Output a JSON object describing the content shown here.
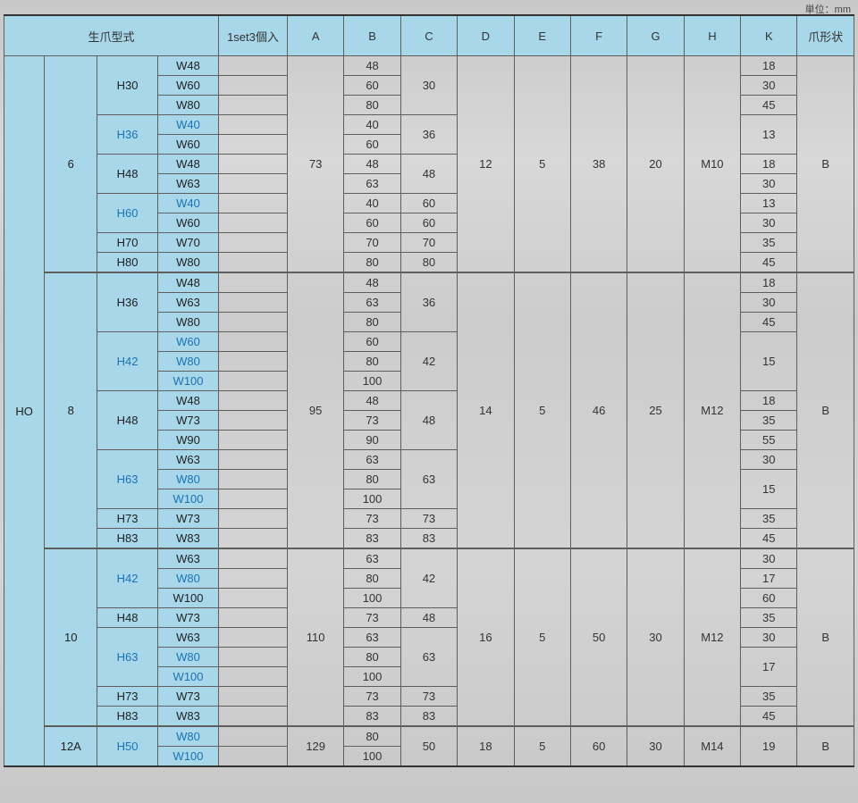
{
  "unit_text": "単位：mm",
  "headers": {
    "group": "生爪型式",
    "set": "1set3個入",
    "cols": [
      "A",
      "B",
      "C",
      "D",
      "E",
      "F",
      "G",
      "H",
      "K",
      "爪形状"
    ]
  },
  "unit_bg": "#a7d7e8",
  "blue_text_color": "#1a73b7",
  "row_model": "HO",
  "groups": [
    {
      "size": "6",
      "A": "73",
      "D": "12",
      "E": "5",
      "F": "38",
      "G": "20",
      "H": "M10",
      "shape": "B",
      "sub": [
        {
          "H": "H30",
          "W": [
            [
              "W48",
              "48",
              false
            ],
            [
              "W60",
              "60",
              false
            ],
            [
              "W80",
              "80",
              false
            ]
          ],
          "C": "30",
          "K": [
            "18",
            "30",
            "45"
          ]
        },
        {
          "H": "H36",
          "Hblue": true,
          "W": [
            [
              "W40",
              "40",
              true
            ],
            [
              "W60",
              "60",
              false
            ]
          ],
          "C": "36",
          "K": [
            "13"
          ],
          "Kspan": 2
        },
        {
          "H": "H48",
          "W": [
            [
              "W48",
              "48",
              false
            ],
            [
              "W63",
              "63",
              false
            ]
          ],
          "C": "48",
          "K": [
            "18",
            "30"
          ]
        },
        {
          "H": "H60",
          "Hblue": true,
          "W": [
            [
              "W40",
              "40",
              true
            ],
            [
              "W60",
              "60",
              false
            ]
          ],
          "C": "60",
          "K": [
            "13",
            "30"
          ],
          "Csplit": [
            "60",
            "60"
          ]
        },
        {
          "H": "H70",
          "W": [
            [
              "W70",
              "70",
              false
            ]
          ],
          "C": "70",
          "K": [
            "35"
          ]
        },
        {
          "H": "H80",
          "W": [
            [
              "W80",
              "80",
              false
            ]
          ],
          "C": "80",
          "K": [
            "45"
          ]
        }
      ]
    },
    {
      "size": "8",
      "A": "95",
      "D": "14",
      "E": "5",
      "F": "46",
      "G": "25",
      "H": "M12",
      "shape": "B",
      "sub": [
        {
          "H": "H36",
          "W": [
            [
              "W48",
              "48",
              false
            ],
            [
              "W63",
              "63",
              false
            ],
            [
              "W80",
              "80",
              false
            ]
          ],
          "C": "36",
          "K": [
            "18",
            "30",
            "45"
          ]
        },
        {
          "H": "H42",
          "Hblue": true,
          "W": [
            [
              "W60",
              "60",
              true
            ],
            [
              "W80",
              "80",
              true
            ],
            [
              "W100",
              "100",
              true
            ]
          ],
          "C": "42",
          "K": [
            "15"
          ],
          "Kspan": 3
        },
        {
          "H": "H48",
          "W": [
            [
              "W48",
              "48",
              false
            ],
            [
              "W73",
              "73",
              false
            ],
            [
              "W90",
              "90",
              false
            ]
          ],
          "C": "48",
          "K": [
            "18",
            "35",
            "55"
          ]
        },
        {
          "H": "H63",
          "Hblue": true,
          "W": [
            [
              "W63",
              "63",
              false
            ],
            [
              "W80",
              "80",
              true
            ],
            [
              "W100",
              "100",
              true
            ]
          ],
          "C": "63",
          "K": [
            "30",
            "15"
          ],
          "Kspan2": 2
        },
        {
          "H": "H73",
          "W": [
            [
              "W73",
              "73",
              false
            ]
          ],
          "C": "73",
          "K": [
            "35"
          ]
        },
        {
          "H": "H83",
          "W": [
            [
              "W83",
              "83",
              false
            ]
          ],
          "C": "83",
          "K": [
            "45"
          ]
        }
      ]
    },
    {
      "size": "10",
      "A": "110",
      "D": "16",
      "E": "5",
      "F": "50",
      "G": "30",
      "H": "M12",
      "shape": "B",
      "sub": [
        {
          "H": "H42",
          "Hblue": true,
          "W": [
            [
              "W63",
              "63",
              false
            ],
            [
              "W80",
              "80",
              true
            ],
            [
              "W100",
              "100",
              false
            ]
          ],
          "C": "42",
          "K": [
            "30",
            "17",
            "60"
          ]
        },
        {
          "H": "H48",
          "W": [
            [
              "W73",
              "73",
              false
            ]
          ],
          "C": "48",
          "K": [
            "35"
          ]
        },
        {
          "H": "H63",
          "Hblue": true,
          "W": [
            [
              "W63",
              "63",
              false
            ],
            [
              "W80",
              "80",
              true
            ],
            [
              "W100",
              "100",
              true
            ]
          ],
          "C": "63",
          "K": [
            "30",
            "17"
          ],
          "Kspan2": 2
        },
        {
          "H": "H73",
          "W": [
            [
              "W73",
              "73",
              false
            ]
          ],
          "C": "73",
          "K": [
            "35"
          ]
        },
        {
          "H": "H83",
          "W": [
            [
              "W83",
              "83",
              false
            ]
          ],
          "C": "83",
          "K": [
            "45"
          ]
        }
      ]
    },
    {
      "size": "12A",
      "A": "129",
      "D": "18",
      "E": "5",
      "F": "60",
      "G": "30",
      "H": "M14",
      "shape": "B",
      "sub": [
        {
          "H": "H50",
          "Hblue": true,
          "W": [
            [
              "W80",
              "80",
              true
            ],
            [
              "W100",
              "100",
              true
            ]
          ],
          "C": "50",
          "K": [
            "19"
          ],
          "Kspan": 2
        }
      ]
    }
  ]
}
